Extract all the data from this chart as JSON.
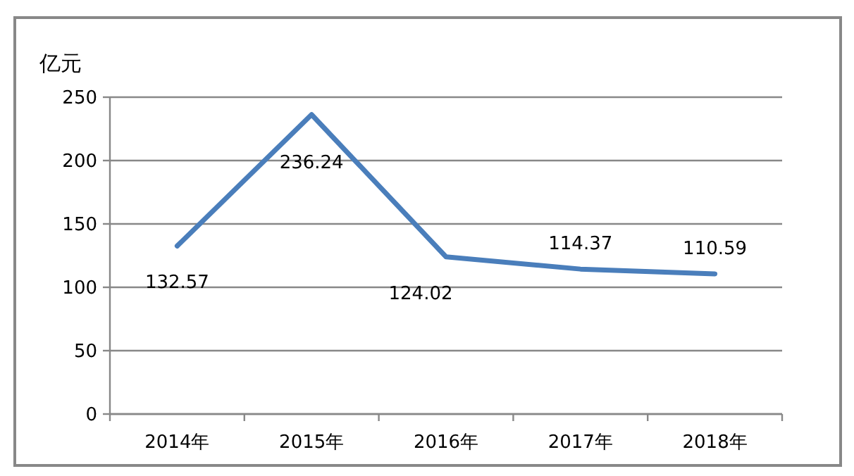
{
  "chart_data": {
    "type": "line",
    "ylabel": "亿元",
    "categories": [
      "2014年",
      "2015年",
      "2016年",
      "2017年",
      "2018年"
    ],
    "series": [
      {
        "color": "#4a7ebb",
        "values": [
          132.57,
          236.24,
          124.02,
          114.37,
          110.59
        ]
      }
    ],
    "ylim": [
      0,
      250
    ],
    "yticks": [
      0,
      50,
      100,
      150,
      200,
      250
    ],
    "grid": "y",
    "data_labels": true,
    "marker": "none",
    "line_style": "solid"
  }
}
